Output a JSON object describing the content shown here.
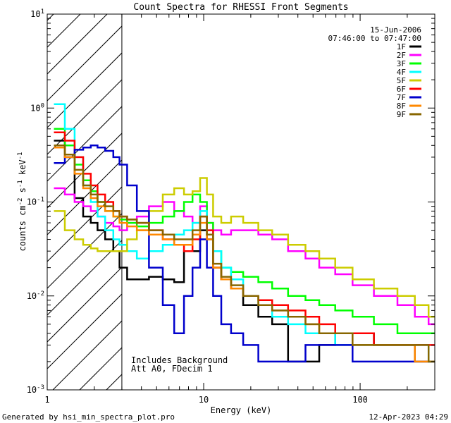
{
  "chart_data": {
    "type": "line",
    "title": "Count Spectra for RHESSI Front Segments",
    "xlabel": "Energy (keV)",
    "ylabel_parts": [
      "counts cm",
      "-2",
      " s",
      "-1",
      " keV",
      "-1"
    ],
    "x_scale": "log",
    "y_scale": "log",
    "xlim": [
      1,
      300
    ],
    "ylim": [
      0.001,
      10
    ],
    "x_ticks": [
      {
        "value": 1,
        "label": "1"
      },
      {
        "value": 10,
        "label": "10"
      },
      {
        "value": 100,
        "label": "100"
      }
    ],
    "y_ticks": [
      {
        "value": 0.001,
        "mant": "10",
        "exp": "-3"
      },
      {
        "value": 0.01,
        "mant": "10",
        "exp": "-2"
      },
      {
        "value": 0.1,
        "mant": "10",
        "exp": "-1"
      },
      {
        "value": 1,
        "mant": "10",
        "exp": "0"
      },
      {
        "value": 10,
        "mant": "10",
        "exp": "1"
      }
    ],
    "date": "15-Jun-2006",
    "time_range": "07:46:00 to 07:47:00",
    "excluded_region": [
      1,
      3
    ],
    "annotations": [
      "Includes Background",
      "Att A0, FDecim 1"
    ],
    "series": [
      {
        "name": "1F",
        "color": "#000000",
        "x": [
          1.2,
          1.4,
          1.6,
          1.8,
          2.0,
          2.2,
          2.5,
          2.8,
          3.0,
          3.5,
          4.0,
          5.0,
          6.0,
          7.0,
          8.0,
          9.0,
          10.0,
          11.0,
          12.0,
          14.0,
          16.0,
          20.0,
          25.0,
          30.0,
          40.0,
          50.0,
          60.0,
          80.0,
          100.0,
          150.0,
          200.0,
          250.0,
          300.0
        ],
        "values": [
          0.45,
          0.3,
          0.11,
          0.07,
          0.06,
          0.05,
          0.04,
          0.03,
          0.02,
          0.015,
          0.015,
          0.016,
          0.015,
          0.014,
          0.03,
          0.03,
          0.05,
          0.04,
          0.02,
          0.015,
          0.012,
          0.008,
          0.006,
          0.005,
          0.002,
          0.002,
          0.003,
          0.004,
          0.004,
          0.003,
          0.003,
          0.002,
          0.002
        ]
      },
      {
        "name": "2F",
        "color": "#ff00ff",
        "x": [
          1.2,
          1.4,
          1.6,
          1.8,
          2.0,
          2.2,
          2.5,
          2.8,
          3.0,
          3.5,
          4.0,
          5.0,
          6.0,
          7.0,
          8.0,
          9.0,
          10.0,
          11.0,
          12.0,
          14.0,
          16.0,
          20.0,
          25.0,
          30.0,
          40.0,
          50.0,
          60.0,
          80.0,
          100.0,
          150.0,
          200.0,
          250.0,
          300.0
        ],
        "values": [
          0.14,
          0.12,
          0.1,
          0.09,
          0.08,
          0.07,
          0.06,
          0.055,
          0.05,
          0.06,
          0.07,
          0.09,
          0.1,
          0.08,
          0.07,
          0.06,
          0.09,
          0.06,
          0.05,
          0.045,
          0.05,
          0.05,
          0.045,
          0.04,
          0.03,
          0.025,
          0.02,
          0.017,
          0.013,
          0.01,
          0.008,
          0.006,
          0.005
        ]
      },
      {
        "name": "3F",
        "color": "#00ff00",
        "x": [
          1.2,
          1.4,
          1.6,
          1.8,
          2.0,
          2.2,
          2.5,
          2.8,
          3.0,
          3.5,
          4.0,
          5.0,
          6.0,
          7.0,
          8.0,
          9.0,
          10.0,
          11.0,
          12.0,
          14.0,
          16.0,
          20.0,
          25.0,
          30.0,
          40.0,
          50.0,
          60.0,
          80.0,
          100.0,
          150.0,
          200.0,
          250.0,
          300.0
        ],
        "values": [
          0.6,
          0.4,
          0.25,
          0.17,
          0.13,
          0.1,
          0.08,
          0.07,
          0.065,
          0.06,
          0.055,
          0.06,
          0.07,
          0.08,
          0.1,
          0.12,
          0.1,
          0.06,
          0.03,
          0.02,
          0.018,
          0.016,
          0.014,
          0.012,
          0.01,
          0.009,
          0.008,
          0.007,
          0.006,
          0.005,
          0.004,
          0.004,
          0.004
        ]
      },
      {
        "name": "4F",
        "color": "#00ffff",
        "x": [
          1.2,
          1.4,
          1.6,
          1.8,
          2.0,
          2.2,
          2.5,
          2.8,
          3.0,
          3.5,
          4.0,
          5.0,
          6.0,
          7.0,
          8.0,
          9.0,
          10.0,
          11.0,
          12.0,
          14.0,
          16.0,
          20.0,
          25.0,
          30.0,
          40.0,
          50.0,
          60.0,
          80.0,
          100.0,
          150.0,
          200.0,
          250.0,
          300.0
        ],
        "values": [
          1.1,
          0.6,
          0.3,
          0.15,
          0.1,
          0.07,
          0.05,
          0.04,
          0.035,
          0.03,
          0.025,
          0.03,
          0.035,
          0.045,
          0.05,
          0.06,
          0.08,
          0.05,
          0.03,
          0.02,
          0.015,
          0.01,
          0.008,
          0.006,
          0.005,
          0.004,
          0.004,
          0.003,
          0.003,
          0.003,
          0.003,
          0.003,
          0.002
        ]
      },
      {
        "name": "5F",
        "color": "#cccc00",
        "x": [
          1.2,
          1.4,
          1.6,
          1.8,
          2.0,
          2.2,
          2.5,
          2.8,
          3.0,
          3.5,
          4.0,
          5.0,
          6.0,
          7.0,
          8.0,
          9.0,
          10.0,
          11.0,
          12.0,
          14.0,
          16.0,
          20.0,
          25.0,
          30.0,
          40.0,
          50.0,
          60.0,
          80.0,
          100.0,
          150.0,
          200.0,
          250.0,
          300.0
        ],
        "values": [
          0.08,
          0.05,
          0.04,
          0.035,
          0.032,
          0.03,
          0.03,
          0.03,
          0.03,
          0.04,
          0.05,
          0.08,
          0.12,
          0.14,
          0.12,
          0.13,
          0.18,
          0.12,
          0.07,
          0.06,
          0.07,
          0.06,
          0.05,
          0.045,
          0.035,
          0.03,
          0.025,
          0.02,
          0.015,
          0.012,
          0.01,
          0.008,
          0.006
        ]
      },
      {
        "name": "6F",
        "color": "#ff0000",
        "x": [
          1.2,
          1.4,
          1.6,
          1.8,
          2.0,
          2.2,
          2.5,
          2.8,
          3.0,
          3.5,
          4.0,
          5.0,
          6.0,
          7.0,
          8.0,
          9.0,
          10.0,
          11.0,
          12.0,
          14.0,
          16.0,
          20.0,
          25.0,
          30.0,
          40.0,
          50.0,
          60.0,
          80.0,
          100.0,
          150.0,
          200.0,
          250.0,
          300.0
        ],
        "values": [
          0.55,
          0.45,
          0.3,
          0.2,
          0.15,
          0.12,
          0.1,
          0.08,
          0.07,
          0.065,
          0.06,
          0.05,
          0.04,
          0.035,
          0.03,
          0.04,
          0.07,
          0.05,
          0.02,
          0.015,
          0.012,
          0.01,
          0.009,
          0.008,
          0.007,
          0.006,
          0.005,
          0.004,
          0.004,
          0.003,
          0.003,
          0.003,
          0.003
        ]
      },
      {
        "name": "7F",
        "color": "#0000cc",
        "x": [
          1.2,
          1.4,
          1.6,
          1.8,
          2.0,
          2.2,
          2.5,
          2.8,
          3.0,
          3.5,
          4.0,
          5.0,
          6.0,
          7.0,
          8.0,
          9.0,
          10.0,
          11.0,
          12.0,
          14.0,
          16.0,
          20.0,
          25.0,
          30.0,
          40.0,
          50.0,
          60.0,
          80.0,
          100.0,
          150.0,
          200.0,
          250.0,
          300.0
        ],
        "values": [
          0.26,
          0.3,
          0.36,
          0.38,
          0.4,
          0.38,
          0.35,
          0.3,
          0.25,
          0.15,
          0.08,
          0.02,
          0.008,
          0.004,
          0.01,
          0.02,
          0.04,
          0.02,
          0.01,
          0.005,
          0.004,
          0.003,
          0.002,
          0.002,
          0.002,
          0.003,
          0.003,
          0.003,
          0.002,
          0.002,
          0.002,
          0.002,
          0.002
        ]
      },
      {
        "name": "8F",
        "color": "#ff8800",
        "x": [
          1.2,
          1.4,
          1.6,
          1.8,
          2.0,
          2.2,
          2.5,
          2.8,
          3.0,
          3.5,
          4.0,
          5.0,
          6.0,
          7.0,
          8.0,
          9.0,
          10.0,
          11.0,
          12.0,
          14.0,
          16.0,
          20.0,
          25.0,
          30.0,
          40.0,
          50.0,
          60.0,
          80.0,
          100.0,
          150.0,
          200.0,
          250.0,
          300.0
        ],
        "values": [
          0.38,
          0.3,
          0.2,
          0.14,
          0.11,
          0.09,
          0.08,
          0.07,
          0.06,
          0.055,
          0.05,
          0.045,
          0.04,
          0.035,
          0.035,
          0.045,
          0.06,
          0.04,
          0.02,
          0.015,
          0.012,
          0.01,
          0.008,
          0.007,
          0.006,
          0.005,
          0.004,
          0.004,
          0.003,
          0.003,
          0.003,
          0.002,
          0.002
        ]
      },
      {
        "name": "9F",
        "color": "#886600",
        "x": [
          1.2,
          1.4,
          1.6,
          1.8,
          2.0,
          2.2,
          2.5,
          2.8,
          3.0,
          3.5,
          4.0,
          5.0,
          6.0,
          7.0,
          8.0,
          9.0,
          10.0,
          11.0,
          12.0,
          14.0,
          16.0,
          20.0,
          25.0,
          30.0,
          40.0,
          50.0,
          60.0,
          80.0,
          100.0,
          150.0,
          200.0,
          250.0,
          300.0
        ],
        "values": [
          0.4,
          0.32,
          0.22,
          0.15,
          0.12,
          0.1,
          0.09,
          0.08,
          0.07,
          0.065,
          0.06,
          0.05,
          0.045,
          0.04,
          0.04,
          0.05,
          0.07,
          0.045,
          0.022,
          0.016,
          0.013,
          0.01,
          0.008,
          0.007,
          0.006,
          0.005,
          0.004,
          0.004,
          0.003,
          0.003,
          0.003,
          0.003,
          0.002
        ]
      }
    ]
  },
  "footer": {
    "left": "Generated by hsi_min_spectra_plot.pro",
    "right": "12-Apr-2023 04:29"
  }
}
